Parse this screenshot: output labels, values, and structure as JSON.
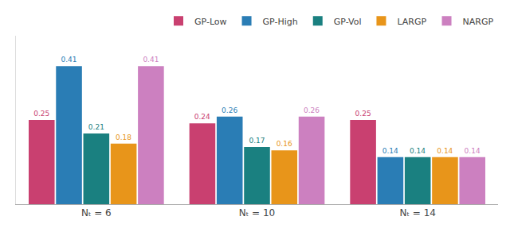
{
  "chart_data": {
    "type": "bar",
    "categories": [
      "Nₜ = 6",
      "Nₜ = 10",
      "Nₜ = 14"
    ],
    "series": [
      {
        "name": "GP-Low",
        "color": "#c94070",
        "values": [
          0.25,
          0.24,
          0.25
        ]
      },
      {
        "name": "GP-High",
        "color": "#2a7db5",
        "values": [
          0.41,
          0.26,
          0.14
        ]
      },
      {
        "name": "GP-Vol",
        "color": "#1a8080",
        "values": [
          0.21,
          0.17,
          0.14
        ]
      },
      {
        "name": "LARGP",
        "color": "#e8951a",
        "values": [
          0.18,
          0.16,
          0.14
        ]
      },
      {
        "name": "NARGP",
        "color": "#cc80c0",
        "values": [
          0.41,
          0.26,
          0.14
        ]
      }
    ],
    "ylim": [
      0,
      0.5
    ],
    "yticks": [],
    "tick_labels": "x",
    "grid": false,
    "legend": "upper right",
    "data_labels": true
  }
}
